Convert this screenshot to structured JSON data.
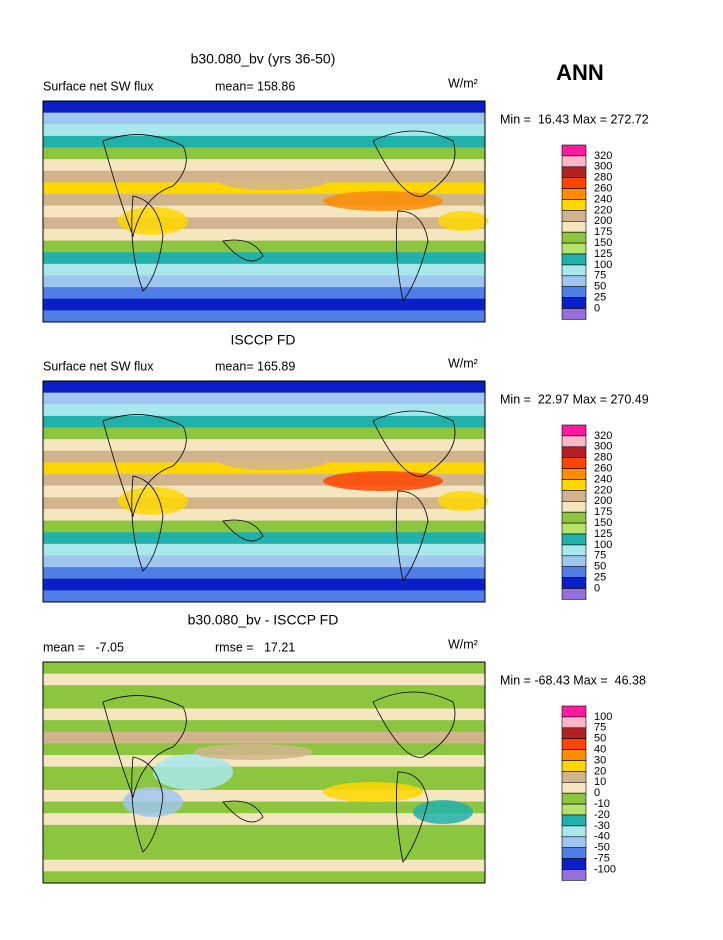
{
  "header": {
    "season": "ANN"
  },
  "panels": [
    {
      "title": "b30.080_bv (yrs 36-50)",
      "left_label": "Surface net SW flux",
      "stat_label": "mean= 158.86",
      "units": "W/m²",
      "range_text": "Min =  16.43 Max = 272.72",
      "colorbar": {
        "labels": [
          "320",
          "300",
          "280",
          "260",
          "240",
          "220",
          "200",
          "175",
          "150",
          "125",
          "100",
          "75",
          "50",
          "25",
          "0"
        ],
        "colors": [
          "#ff1aa0",
          "#ffb6c8",
          "#b22222",
          "#ff4500",
          "#ff8c00",
          "#ffd700",
          "#d2b48c",
          "#f5e6c0",
          "#8cc63f",
          "#b5e36b",
          "#20b2aa",
          "#a8e8ec",
          "#9fc6ef",
          "#4f7ee6",
          "#0a1fc8",
          "#9370db"
        ]
      }
    },
    {
      "title": "ISCCP FD",
      "left_label": "Surface net SW flux",
      "stat_label": "mean= 165.89",
      "units": "W/m²",
      "range_text": "Min =  22.97 Max = 270.49",
      "colorbar": {
        "labels": [
          "320",
          "300",
          "280",
          "260",
          "240",
          "220",
          "200",
          "175",
          "150",
          "125",
          "100",
          "75",
          "50",
          "25",
          "0"
        ],
        "colors": [
          "#ff1aa0",
          "#ffb6c8",
          "#b22222",
          "#ff4500",
          "#ff8c00",
          "#ffd700",
          "#d2b48c",
          "#f5e6c0",
          "#8cc63f",
          "#b5e36b",
          "#20b2aa",
          "#a8e8ec",
          "#9fc6ef",
          "#4f7ee6",
          "#0a1fc8",
          "#9370db"
        ]
      }
    },
    {
      "title": "b30.080_bv - ISCCP FD",
      "left_label": "mean =   -7.05",
      "stat_label": "rmse =   17.21",
      "units": "W/m²",
      "range_text": "Min = -68.43 Max =  46.38",
      "colorbar": {
        "labels": [
          "100",
          "75",
          "50",
          "40",
          "30",
          "20",
          "10",
          "0",
          "-10",
          "-20",
          "-30",
          "-40",
          "-50",
          "-75",
          "-100"
        ],
        "colors": [
          "#ff1aa0",
          "#ffb6c8",
          "#b22222",
          "#ff4500",
          "#ff8c00",
          "#ffd700",
          "#d2b48c",
          "#f5e6c0",
          "#8cc63f",
          "#b5e36b",
          "#20b2aa",
          "#a8e8ec",
          "#9fc6ef",
          "#4f7ee6",
          "#0a1fc8",
          "#9370db"
        ]
      }
    }
  ]
}
